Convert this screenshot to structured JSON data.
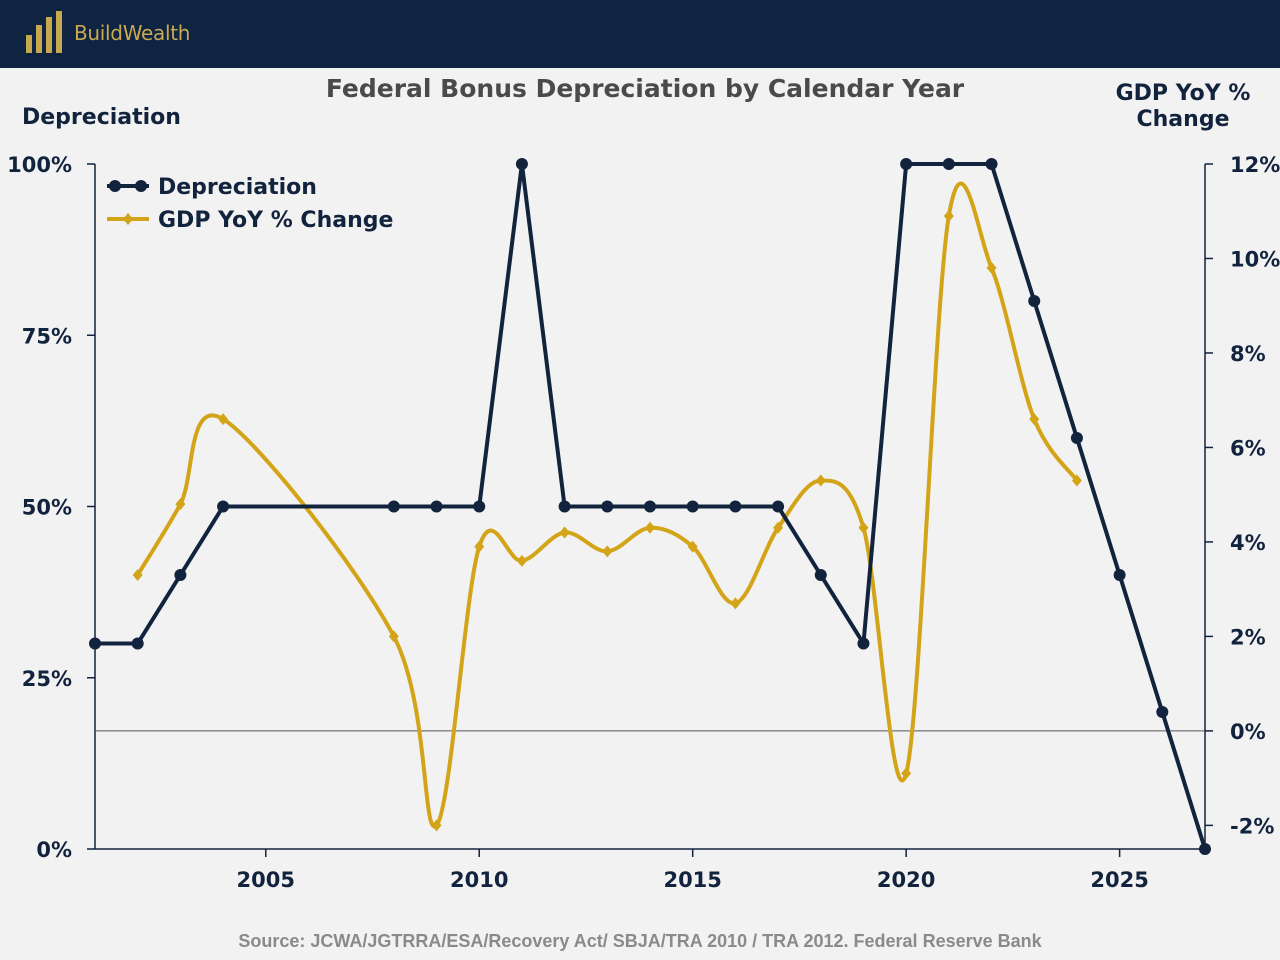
{
  "header": {
    "brand_name": "BuildWealth",
    "logo_icon": "stacked-bars-logo-icon"
  },
  "colors": {
    "header_bg": "#0f2442",
    "brand_gold": "#c9a94e",
    "depreciation_line": "#12233d",
    "gdp_line": "#d4a418",
    "background": "#f2f2f2"
  },
  "chart_data": {
    "type": "line",
    "title": "Federal Bonus Depreciation by Calendar Year",
    "left_axis_label": "Depreciation",
    "right_axis_label": "GDP YoY % Change",
    "left_ylim": [
      0,
      100
    ],
    "right_ylim": [
      -2.5,
      12
    ],
    "xlim": [
      2001,
      2027
    ],
    "left_ticks": [
      "0%",
      "25%",
      "50%",
      "75%",
      "100%"
    ],
    "left_tick_values": [
      0,
      25,
      50,
      75,
      100
    ],
    "right_ticks": [
      "-2%",
      "0%",
      "2%",
      "4%",
      "6%",
      "8%",
      "10%",
      "12%"
    ],
    "right_tick_values": [
      -2,
      0,
      2,
      4,
      6,
      8,
      10,
      12
    ],
    "x_ticks": [
      "2005",
      "2010",
      "2015",
      "2020",
      "2025"
    ],
    "x_tick_values": [
      2005,
      2010,
      2015,
      2020,
      2025
    ],
    "legend_position": "top-left",
    "series": [
      {
        "name": "Depreciation",
        "axis": "left",
        "marker": "circle",
        "x": [
          2001,
          2002,
          2003,
          2004,
          2008,
          2009,
          2010,
          2011,
          2012,
          2013,
          2014,
          2015,
          2016,
          2017,
          2018,
          2019,
          2020,
          2021,
          2022,
          2023,
          2024,
          2025,
          2026,
          2027
        ],
        "values": [
          30,
          30,
          40,
          50,
          50,
          50,
          50,
          100,
          50,
          50,
          50,
          50,
          50,
          50,
          40,
          30,
          100,
          100,
          100,
          80,
          60,
          40,
          20,
          0
        ]
      },
      {
        "name": "GDP YoY % Change",
        "axis": "right",
        "marker": "diamond",
        "x": [
          2002,
          2003,
          2004,
          2008,
          2009,
          2010,
          2011,
          2012,
          2013,
          2014,
          2015,
          2016,
          2017,
          2018,
          2019,
          2020,
          2021,
          2022,
          2023,
          2024
        ],
        "values": [
          3.3,
          4.8,
          6.6,
          2.0,
          -2.0,
          3.9,
          3.6,
          4.2,
          3.8,
          4.3,
          3.9,
          2.7,
          4.3,
          5.3,
          4.3,
          -0.9,
          10.9,
          9.8,
          6.6,
          5.3
        ]
      }
    ]
  },
  "source": "Source: JCWA/JGTRRA/ESA/Recovery Act/ SBJA/TRA 2010 / TRA 2012. Federal Reserve Bank"
}
